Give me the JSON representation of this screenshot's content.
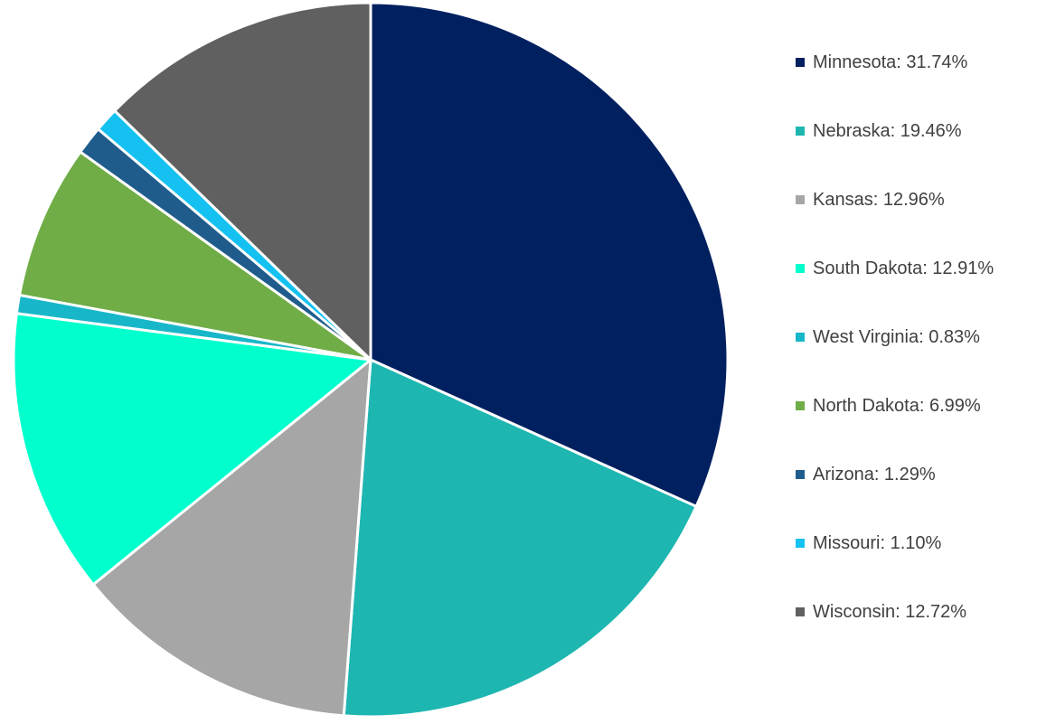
{
  "chart_data": {
    "type": "pie",
    "title": "",
    "legend_position": "right",
    "slices": [
      {
        "label": "Minnesota",
        "value": 31.74,
        "legend": "Minnesota: 31.74%",
        "color": "#002060"
      },
      {
        "label": "Nebraska",
        "value": 19.46,
        "legend": "Nebraska: 19.46%",
        "color": "#1EB6B1"
      },
      {
        "label": "Kansas",
        "value": 12.96,
        "legend": "Kansas: 12.96%",
        "color": "#A6A6A6"
      },
      {
        "label": "South Dakota",
        "value": 12.91,
        "legend": "South Dakota: 12.91%",
        "color": "#00FFCC"
      },
      {
        "label": "West Virginia",
        "value": 0.83,
        "legend": "West Virginia: 0.83%",
        "color": "#17B7C9"
      },
      {
        "label": "North Dakota",
        "value": 6.99,
        "legend": "North Dakota: 6.99%",
        "color": "#70AD47"
      },
      {
        "label": "Arizona",
        "value": 1.29,
        "legend": "Arizona: 1.29%",
        "color": "#1F5C8C"
      },
      {
        "label": "Missouri",
        "value": 1.1,
        "legend": "Missouri: 1.10%",
        "color": "#14C1F0"
      },
      {
        "label": "Wisconsin",
        "value": 12.72,
        "legend": "Wisconsin: 12.72%",
        "color": "#606060"
      }
    ]
  }
}
